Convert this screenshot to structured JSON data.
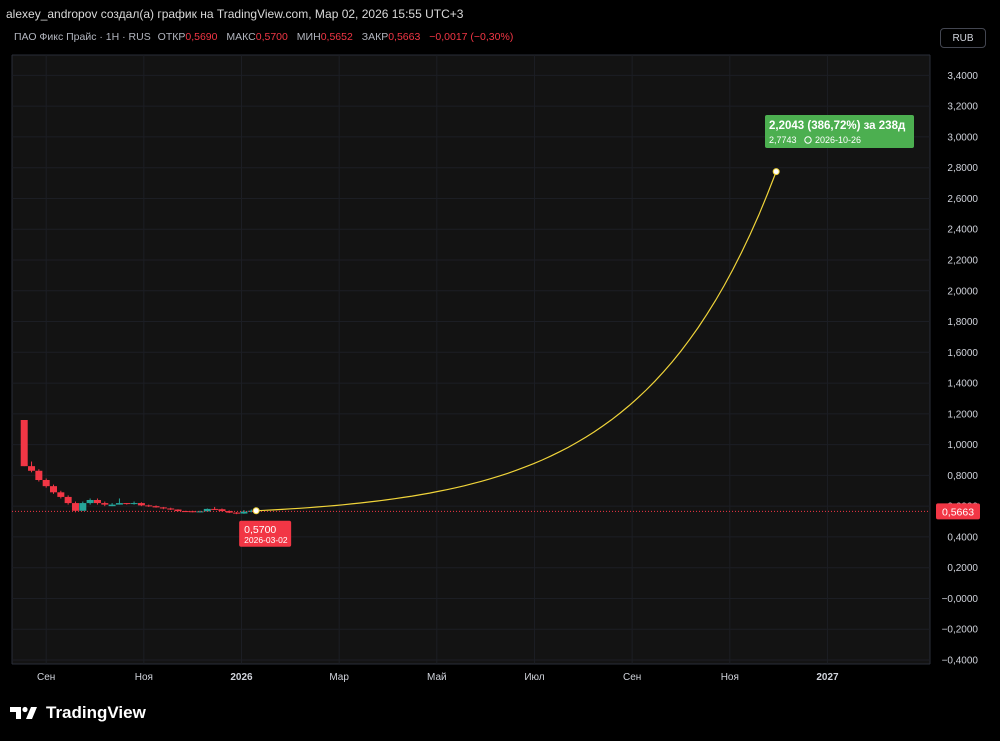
{
  "header": {
    "attribution": "alexey_andropov создал(а) график на TradingView.com, Мар 02, 2026 15:55 UTC+3"
  },
  "legend": {
    "symbol": "ПАО Фикс Прайс · 1Н · RUS",
    "open_label": "ОТКР",
    "open": "0,5690",
    "high_label": "МАКС",
    "high": "0,5700",
    "low_label": "МИН",
    "low": "0,5652",
    "close_label": "ЗАКР",
    "close": "0,5663",
    "change": "−0,0017 (−0,30%)"
  },
  "currency_button": "RUB",
  "brand": "TradingView",
  "colors": {
    "up": "#26a69a",
    "down": "#f23645",
    "projection": "#f0d43a",
    "target_label": "#4caf50",
    "grid": "#1c1e24"
  },
  "chart_data": {
    "type": "candlestick",
    "ylim": [
      -0.4,
      3.5
    ],
    "y_ticks": [
      "3,4000",
      "3,2000",
      "3,0000",
      "2,8000",
      "2,6000",
      "2,4000",
      "2,2000",
      "2,0000",
      "1,8000",
      "1,6000",
      "1,4000",
      "1,2000",
      "1,0000",
      "0,8000",
      "0,6000",
      "0,4000",
      "0,2000",
      "−0,0000",
      "−0,2000",
      "−0,4000"
    ],
    "y_tick_values": [
      3.4,
      3.2,
      3.0,
      2.8,
      2.6,
      2.4,
      2.2,
      2.0,
      1.8,
      1.6,
      1.4,
      1.2,
      1.0,
      0.8,
      0.6,
      0.4,
      0.2,
      0.0,
      -0.2,
      -0.4
    ],
    "x_ticks": [
      {
        "label": "Сен",
        "t": 0.0,
        "bold": false
      },
      {
        "label": "Ноя",
        "t": 2.0,
        "bold": false
      },
      {
        "label": "2026",
        "t": 4.0,
        "bold": true
      },
      {
        "label": "Мар",
        "t": 6.0,
        "bold": false
      },
      {
        "label": "Май",
        "t": 8.0,
        "bold": false
      },
      {
        "label": "Июл",
        "t": 10.0,
        "bold": false
      },
      {
        "label": "Сен",
        "t": 12.0,
        "bold": false
      },
      {
        "label": "Ноя",
        "t": 14.0,
        "bold": false
      },
      {
        "label": "2027",
        "t": 16.0,
        "bold": true
      }
    ],
    "x_range": [
      -0.7,
      18.1
    ],
    "candles": [
      {
        "t": -0.45,
        "o": 1.16,
        "h": 1.16,
        "l": 0.86,
        "c": 0.86
      },
      {
        "t": -0.3,
        "o": 0.86,
        "h": 0.89,
        "l": 0.82,
        "c": 0.83
      },
      {
        "t": -0.15,
        "o": 0.83,
        "h": 0.84,
        "l": 0.76,
        "c": 0.77
      },
      {
        "t": 0.0,
        "o": 0.77,
        "h": 0.78,
        "l": 0.72,
        "c": 0.73
      },
      {
        "t": 0.15,
        "o": 0.73,
        "h": 0.74,
        "l": 0.68,
        "c": 0.69
      },
      {
        "t": 0.3,
        "o": 0.69,
        "h": 0.7,
        "l": 0.65,
        "c": 0.66
      },
      {
        "t": 0.45,
        "o": 0.66,
        "h": 0.67,
        "l": 0.61,
        "c": 0.62
      },
      {
        "t": 0.6,
        "o": 0.62,
        "h": 0.63,
        "l": 0.56,
        "c": 0.57
      },
      {
        "t": 0.75,
        "o": 0.57,
        "h": 0.63,
        "l": 0.57,
        "c": 0.62
      },
      {
        "t": 0.9,
        "o": 0.62,
        "h": 0.65,
        "l": 0.61,
        "c": 0.64
      },
      {
        "t": 1.05,
        "o": 0.64,
        "h": 0.65,
        "l": 0.61,
        "c": 0.62
      },
      {
        "t": 1.2,
        "o": 0.62,
        "h": 0.63,
        "l": 0.6,
        "c": 0.61
      },
      {
        "t": 1.35,
        "o": 0.6,
        "h": 0.62,
        "l": 0.6,
        "c": 0.61
      },
      {
        "t": 1.5,
        "o": 0.61,
        "h": 0.65,
        "l": 0.61,
        "c": 0.62
      },
      {
        "t": 1.65,
        "o": 0.62,
        "h": 0.62,
        "l": 0.61,
        "c": 0.615
      },
      {
        "t": 1.8,
        "o": 0.615,
        "h": 0.63,
        "l": 0.61,
        "c": 0.62
      },
      {
        "t": 1.95,
        "o": 0.62,
        "h": 0.625,
        "l": 0.6,
        "c": 0.605
      },
      {
        "t": 2.1,
        "o": 0.605,
        "h": 0.61,
        "l": 0.595,
        "c": 0.6
      },
      {
        "t": 2.25,
        "o": 0.6,
        "h": 0.605,
        "l": 0.59,
        "c": 0.592
      },
      {
        "t": 2.4,
        "o": 0.592,
        "h": 0.595,
        "l": 0.58,
        "c": 0.585
      },
      {
        "t": 2.55,
        "o": 0.585,
        "h": 0.59,
        "l": 0.575,
        "c": 0.578
      },
      {
        "t": 2.7,
        "o": 0.578,
        "h": 0.58,
        "l": 0.565,
        "c": 0.568
      },
      {
        "t": 2.85,
        "o": 0.568,
        "h": 0.57,
        "l": 0.565,
        "c": 0.567
      },
      {
        "t": 3.0,
        "o": 0.567,
        "h": 0.57,
        "l": 0.56,
        "c": 0.565
      },
      {
        "t": 3.15,
        "o": 0.565,
        "h": 0.57,
        "l": 0.56,
        "c": 0.566
      },
      {
        "t": 3.3,
        "o": 0.566,
        "h": 0.585,
        "l": 0.565,
        "c": 0.582
      },
      {
        "t": 3.45,
        "o": 0.582,
        "h": 0.595,
        "l": 0.575,
        "c": 0.58
      },
      {
        "t": 3.6,
        "o": 0.58,
        "h": 0.585,
        "l": 0.565,
        "c": 0.568
      },
      {
        "t": 3.75,
        "o": 0.568,
        "h": 0.572,
        "l": 0.555,
        "c": 0.558
      },
      {
        "t": 3.9,
        "o": 0.558,
        "h": 0.562,
        "l": 0.548,
        "c": 0.552
      },
      {
        "t": 4.05,
        "o": 0.552,
        "h": 0.575,
        "l": 0.55,
        "c": 0.565
      },
      {
        "t": 4.2,
        "o": 0.565,
        "h": 0.578,
        "l": 0.56,
        "c": 0.57
      }
    ],
    "last_price": {
      "value": 0.5663,
      "label": "0,5663"
    },
    "projection": {
      "start": {
        "t": 4.3,
        "v": 0.57
      },
      "end": {
        "t": 14.95,
        "v": 2.7743
      },
      "start_label": "0,5700",
      "start_date": "2026-03-02",
      "target_main": "2,2043 (386,72%) за 238д",
      "target_value": "2,7743",
      "target_date": "2026-10-26"
    }
  }
}
